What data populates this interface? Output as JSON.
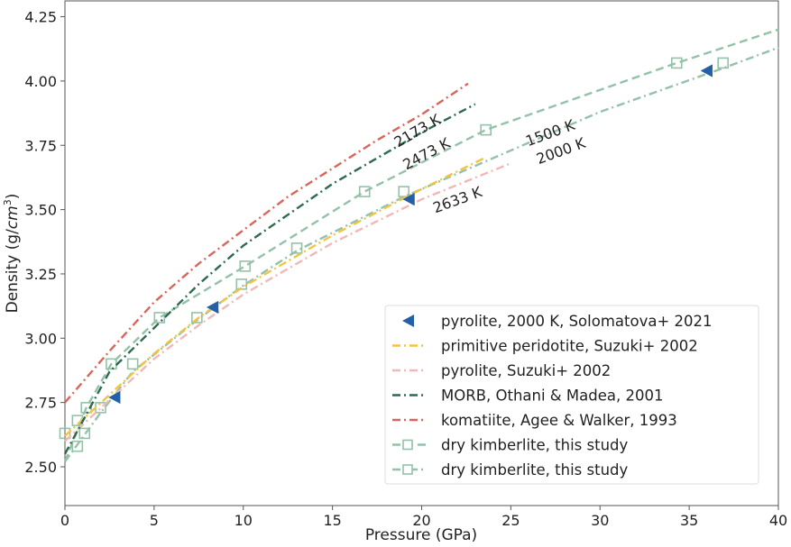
{
  "chart_data": {
    "type": "line",
    "xlabel": "Pressure (GPa)",
    "ylabel": "Density (g/cm³)",
    "ylabel_parts": {
      "main": "Density (g/",
      "italic": "cm",
      "sup": "3",
      "end": ")"
    },
    "xlim": [
      0,
      40
    ],
    "ylim": [
      2.42,
      4.3
    ],
    "xticks": [
      0,
      5,
      10,
      15,
      20,
      25,
      30,
      35,
      40
    ],
    "yticks": [
      "2.50",
      "2.75",
      "3.00",
      "3.25",
      "3.50",
      "3.75",
      "4.00",
      "4.25"
    ],
    "grid": false,
    "legend_position": "lower-right",
    "colors": {
      "triangle": "#2460a7",
      "peridotite": "#f5c342",
      "pyrolite": "#f2b8b8",
      "morb": "#2d6a4f",
      "komatiite": "#d9665b",
      "kimberlite": "#94c2a8"
    },
    "series": [
      {
        "name": "pyrolite, 2000 K, Solomatova+ 2021",
        "kind": "triangle",
        "color": "#2460a7",
        "points": [
          [
            2.8,
            2.77
          ],
          [
            8.3,
            3.12
          ],
          [
            19.3,
            3.54
          ],
          [
            36.0,
            4.04
          ]
        ]
      },
      {
        "name": "primitive peridotite, Suzuki+ 2002",
        "kind": "dashdot",
        "color": "#f5c342",
        "points": [
          [
            0,
            2.62
          ],
          [
            2.5,
            2.78
          ],
          [
            5,
            2.94
          ],
          [
            7.5,
            3.08
          ],
          [
            10,
            3.2
          ],
          [
            15,
            3.4
          ],
          [
            20,
            3.58
          ],
          [
            23.5,
            3.7
          ]
        ]
      },
      {
        "name": "pyrolite, Suzuki+ 2002",
        "kind": "dashdot",
        "color": "#f2b8b8",
        "points": [
          [
            0,
            2.6
          ],
          [
            2.5,
            2.76
          ],
          [
            5,
            2.92
          ],
          [
            7.5,
            3.05
          ],
          [
            10,
            3.17
          ],
          [
            15,
            3.37
          ],
          [
            20,
            3.54
          ],
          [
            25,
            3.68
          ]
        ]
      },
      {
        "name": "MORB, Othani & Madea, 2001",
        "kind": "dashdot",
        "color": "#2d6a4f",
        "points": [
          [
            0,
            2.55
          ],
          [
            2.5,
            2.87
          ],
          [
            5,
            3.04
          ],
          [
            7.5,
            3.21
          ],
          [
            10,
            3.36
          ],
          [
            12.5,
            3.48
          ],
          [
            15,
            3.6
          ],
          [
            17.5,
            3.7
          ],
          [
            20,
            3.8
          ],
          [
            23,
            3.91
          ]
        ]
      },
      {
        "name": "komatiite, Agee & Walker, 1993",
        "kind": "dashdot",
        "color": "#d9665b",
        "points": [
          [
            0,
            2.75
          ],
          [
            2.5,
            2.95
          ],
          [
            5,
            3.14
          ],
          [
            7.5,
            3.29
          ],
          [
            10,
            3.42
          ],
          [
            12.5,
            3.55
          ],
          [
            15,
            3.66
          ],
          [
            17.5,
            3.77
          ],
          [
            20,
            3.87
          ],
          [
            22.6,
            3.99
          ]
        ]
      },
      {
        "name": "dry kimberlite, this study",
        "kind": "dashed",
        "color": "#94c2a8",
        "points": [
          [
            0,
            2.52
          ],
          [
            1.2,
            2.73
          ],
          [
            2.6,
            2.9
          ],
          [
            5.3,
            3.08
          ],
          [
            10.1,
            3.28
          ],
          [
            16.8,
            3.57
          ],
          [
            23.6,
            3.81
          ],
          [
            34.3,
            4.07
          ],
          [
            40,
            4.2
          ]
        ],
        "markers": [
          [
            0,
            2.63
          ],
          [
            0.7,
            2.68
          ],
          [
            1.2,
            2.73
          ],
          [
            2.6,
            2.9
          ],
          [
            5.3,
            3.08
          ],
          [
            10.1,
            3.28
          ],
          [
            16.8,
            3.57
          ],
          [
            23.6,
            3.81
          ],
          [
            34.3,
            4.07
          ]
        ]
      },
      {
        "name": "dry kimberlite, this study",
        "kind": "dashdot2",
        "color": "#94c2a8",
        "points": [
          [
            0,
            2.52
          ],
          [
            2,
            2.71
          ],
          [
            3.8,
            2.87
          ],
          [
            7.4,
            3.07
          ],
          [
            9.9,
            3.2
          ],
          [
            13,
            3.34
          ],
          [
            19,
            3.55
          ],
          [
            30,
            3.88
          ],
          [
            36.9,
            4.05
          ],
          [
            40,
            4.13
          ]
        ],
        "markers": [
          [
            0.7,
            2.58
          ],
          [
            1.1,
            2.63
          ],
          [
            2,
            2.73
          ],
          [
            3.8,
            2.9
          ],
          [
            7.4,
            3.08
          ],
          [
            9.9,
            3.21
          ],
          [
            13,
            3.35
          ],
          [
            19,
            3.57
          ],
          [
            36.9,
            4.07
          ]
        ]
      }
    ],
    "annotations": [
      {
        "text": "2173 K",
        "x": 19.9,
        "y": 3.79,
        "angle": -30
      },
      {
        "text": "2473 K",
        "x": 20.4,
        "y": 3.7,
        "angle": -28
      },
      {
        "text": "1500 K",
        "x": 27.3,
        "y": 3.78,
        "angle": -20
      },
      {
        "text": "2000 K",
        "x": 27.9,
        "y": 3.71,
        "angle": -20
      },
      {
        "text": "2633 K",
        "x": 22.1,
        "y": 3.52,
        "angle": -20
      }
    ]
  }
}
